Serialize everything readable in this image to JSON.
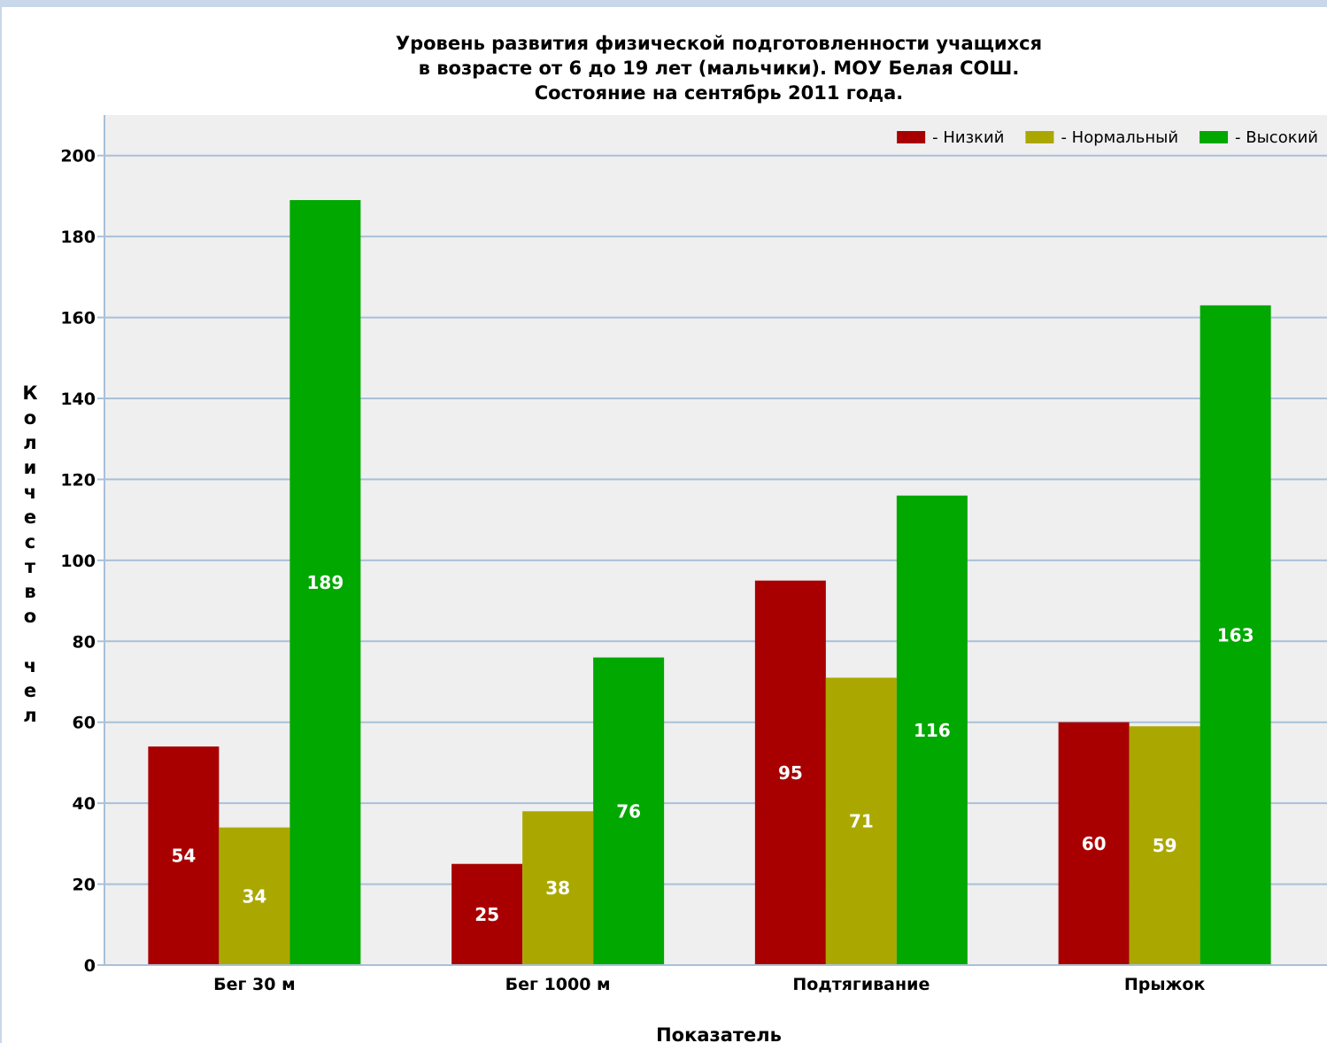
{
  "chart_data": {
    "type": "bar",
    "title": [
      "Уровень развития физической подготовленности учащихся",
      "в возрасте от 6 до 19 лет (мальчики). МОУ Белая СОШ.",
      "Состояние на сентябрь 2011 года."
    ],
    "xlabel": "Показатель",
    "ylabel": "Количество чел",
    "ylim": [
      0,
      200
    ],
    "yticks": [
      0,
      20,
      40,
      60,
      80,
      100,
      120,
      140,
      160,
      180,
      200
    ],
    "grid": true,
    "legend_position": "top-right",
    "categories": [
      "Бег 30 м",
      "Бег 1000 м",
      "Подтягивание",
      "Прыжок"
    ],
    "series": [
      {
        "name": "- Низкий",
        "color": "#a80000",
        "values": [
          54,
          25,
          95,
          60
        ]
      },
      {
        "name": "- Нормальный",
        "color": "#aaa800",
        "values": [
          34,
          38,
          71,
          59
        ]
      },
      {
        "name": "- Высокий",
        "color": "#00a800",
        "values": [
          189,
          76,
          116,
          163
        ]
      }
    ]
  }
}
